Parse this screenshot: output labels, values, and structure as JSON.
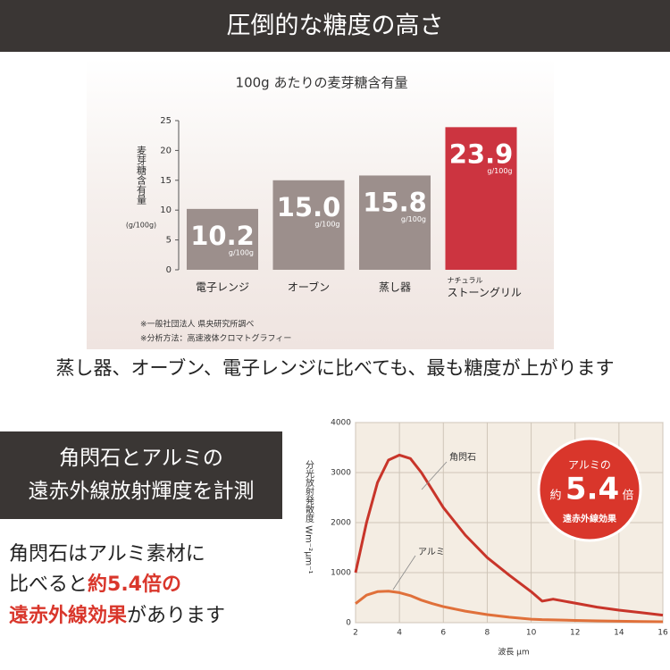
{
  "header": {
    "title": "圧倒的な糖度の高さ"
  },
  "caption": "蒸し器、オーブン、電子レンジに比べても、最も糖度が上がります",
  "measure_box": {
    "lines": [
      "角閃石とアルミの",
      "遠赤外線放射輝度を計測"
    ]
  },
  "summary": {
    "line1": "角閃石はアルミ素材に",
    "line2": "比べると",
    "line2_highlight": "約5.4倍の",
    "line3_highlight": "遠赤外線効果",
    "line3": "があります"
  },
  "chart_data": [
    {
      "type": "bar",
      "title": "100g あたりの麦芽糖含有量",
      "y_label": "麦芽糖含有量",
      "y_unit": "(g/100g)",
      "categories": [
        "電子レンジ",
        "オーブン",
        "蒸し器",
        "ストーングリル"
      ],
      "category_notes": [
        null,
        null,
        null,
        "ナチュラル"
      ],
      "values": [
        10.2,
        15,
        15.8,
        23.9
      ],
      "value_labels": [
        "10.2",
        "15.0",
        "15.8",
        "23.9"
      ],
      "value_unit": "g/100g",
      "colors": [
        "#9c8f8c",
        "#9c8f8c",
        "#9c8f8c",
        "#cc3440"
      ],
      "ylim": [
        0,
        25
      ],
      "yticks": [
        0,
        5,
        10,
        15,
        20,
        25
      ],
      "notes": [
        "※一般社団法人 県央研究所調べ",
        "※分析方法：高速液体クロマトグラフィー"
      ]
    },
    {
      "type": "line",
      "x_label": "波長 μm",
      "y_label": "分光放射発散度 Wm⁻²μm⁻¹",
      "x": [
        2,
        2.5,
        3,
        3.5,
        4,
        4.5,
        5,
        5.5,
        6,
        7,
        8,
        9,
        10,
        10.5,
        11,
        12,
        13,
        14,
        15,
        16
      ],
      "series": [
        {
          "name": "角閃石",
          "color": "#c8352a",
          "values": [
            1000,
            2000,
            2800,
            3250,
            3350,
            3280,
            3000,
            2650,
            2300,
            1750,
            1300,
            950,
            620,
            430,
            470,
            390,
            310,
            250,
            200,
            150
          ]
        },
        {
          "name": "アルミ",
          "color": "#e0703a",
          "values": [
            380,
            550,
            620,
            630,
            600,
            540,
            450,
            380,
            320,
            230,
            160,
            110,
            70,
            60,
            55,
            45,
            35,
            28,
            22,
            18
          ]
        }
      ],
      "xlim": [
        2,
        16
      ],
      "xticks": [
        2,
        4,
        6,
        8,
        10,
        12,
        14,
        16
      ],
      "ylim": [
        0,
        4000
      ],
      "yticks": [
        0,
        1000,
        2000,
        3000,
        4000
      ],
      "grid": true,
      "badge": {
        "top": "アルミの",
        "prefix": "約",
        "value": "5.4",
        "suffix": "倍",
        "bottom": "遠赤外線効果"
      }
    }
  ]
}
